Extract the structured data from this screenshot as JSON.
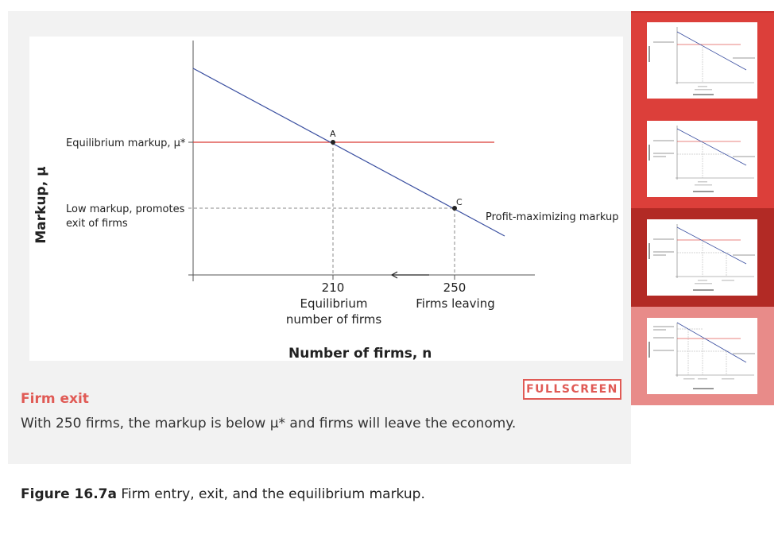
{
  "figure": {
    "y_axis_label": "Markup, μ",
    "x_axis_label": "Number of firms, n",
    "hline_label": "Equilibrium markup, μ*",
    "low_markup_label_line1": "Low markup, promotes",
    "low_markup_label_line2": "exit of firms",
    "curve_label": "Profit-maximizing markup",
    "point_a": "A",
    "point_c": "C",
    "tick_210": "210",
    "tick_210_label_line1": "Equilibrium",
    "tick_210_label_line2": "number of firms",
    "tick_250": "250",
    "tick_250_label": "Firms leaving"
  },
  "fullscreen_label": "FULLSCREEN",
  "step": {
    "title": "Firm exit",
    "description": "With 250 firms, the markup is below μ* and firms will leave the economy."
  },
  "caption": {
    "number": "Figure 16.7a",
    "text": " Firm entry, exit, and the equilibrium markup."
  },
  "thumbnails": {
    "colors": {
      "default": "#dc3f3a",
      "active": "#b22a25",
      "upcoming": "#e88b89",
      "hline": "#e05a55",
      "curve": "#3a4fa0"
    },
    "active_index": 2,
    "count": 4
  },
  "colors": {
    "accent": "#e05a55",
    "panel_bg": "#f2f2f2",
    "curve": "#3a4fa0",
    "hline": "#d93a34"
  }
}
